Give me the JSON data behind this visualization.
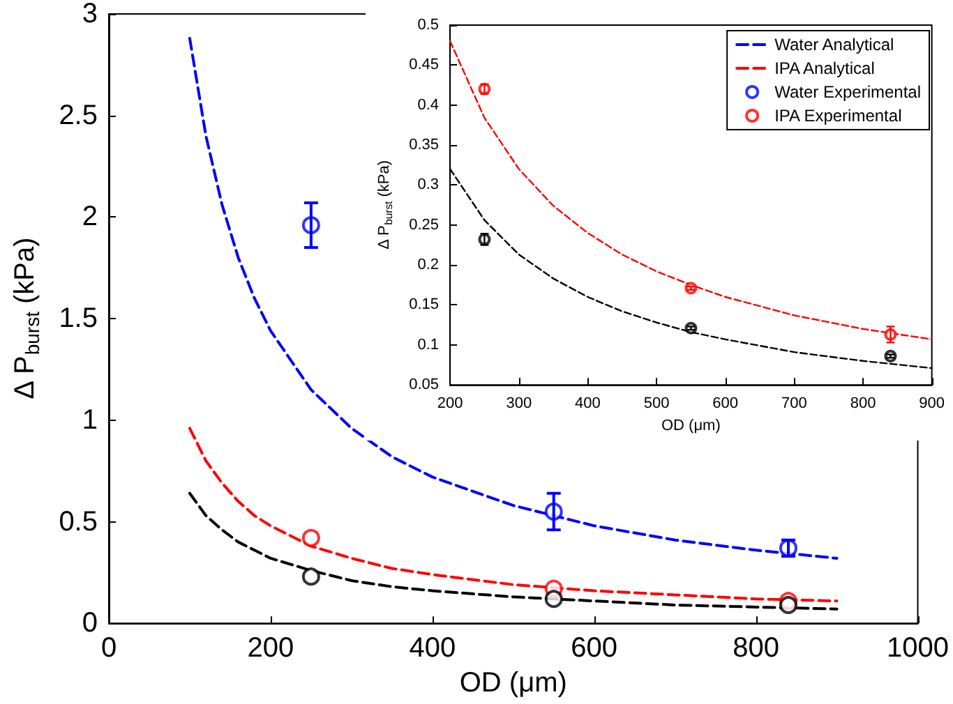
{
  "chart_data": [
    {
      "type": "line",
      "xlabel": "OD (μm)",
      "ylabel": "Δ P$_{burst}$ (kPa)",
      "xlim": [
        0,
        1000
      ],
      "xticks": [
        0,
        200,
        400,
        600,
        800,
        1000
      ],
      "ylim": [
        0,
        3
      ],
      "yticks": [
        0,
        0.5,
        1,
        1.5,
        2,
        2.5,
        3
      ],
      "grid": false,
      "legend": false,
      "series": [
        {
          "color": "#0000ff",
          "line_style": "dashed",
          "marker": "none",
          "x": [
            100,
            120,
            140,
            160,
            180,
            200,
            250,
            300,
            350,
            400,
            500,
            600,
            700,
            800,
            900
          ],
          "values": [
            2.88,
            2.4,
            2.06,
            1.8,
            1.6,
            1.44,
            1.15,
            0.96,
            0.82,
            0.72,
            0.58,
            0.48,
            0.41,
            0.36,
            0.32
          ]
        },
        {
          "color": "#ff0000",
          "line_style": "dashed",
          "marker": "none",
          "x": [
            100,
            120,
            140,
            160,
            180,
            200,
            250,
            300,
            350,
            400,
            500,
            600,
            700,
            800,
            900
          ],
          "values": [
            0.96,
            0.8,
            0.69,
            0.6,
            0.53,
            0.48,
            0.38,
            0.32,
            0.27,
            0.24,
            0.19,
            0.16,
            0.14,
            0.12,
            0.11
          ]
        },
        {
          "color": "#000000",
          "line_style": "dashed",
          "marker": "none",
          "x": [
            100,
            120,
            140,
            160,
            180,
            200,
            250,
            300,
            350,
            400,
            500,
            600,
            700,
            800,
            900
          ],
          "values": [
            0.64,
            0.53,
            0.46,
            0.4,
            0.36,
            0.32,
            0.26,
            0.21,
            0.18,
            0.16,
            0.13,
            0.11,
            0.09,
            0.08,
            0.07
          ]
        },
        {
          "type": "scatter",
          "color": "#0000ff",
          "marker": "circle",
          "x": [
            250,
            550,
            840
          ],
          "values": [
            1.96,
            0.55,
            0.37
          ],
          "errors": [
            0.11,
            0.09,
            0.04
          ]
        },
        {
          "type": "scatter",
          "color": "#ff0000",
          "marker": "circle",
          "x": [
            250,
            550,
            840
          ],
          "values": [
            0.42,
            0.17,
            0.11
          ]
        },
        {
          "type": "scatter",
          "color": "#000000",
          "marker": "circle",
          "x": [
            250,
            550,
            840
          ],
          "values": [
            0.23,
            0.12,
            0.09
          ]
        }
      ]
    },
    {
      "type": "line",
      "xlabel": "OD (μm)",
      "ylabel": "Δ P$_{burst}$ (kPa)",
      "xlim": [
        200,
        900
      ],
      "xticks": [
        200,
        300,
        400,
        500,
        600,
        700,
        800,
        900
      ],
      "ylim": [
        0.05,
        0.5
      ],
      "yticks": [
        0.05,
        0.1,
        0.15,
        0.2,
        0.25,
        0.3,
        0.35,
        0.4,
        0.45,
        0.5
      ],
      "grid": false,
      "legend": "top right",
      "series": [
        {
          "name": "Water Analytical",
          "color": "#0000ff",
          "line_style": "dashed",
          "marker": "none",
          "type": "line"
        },
        {
          "name": "IPA Analytical",
          "color": "#ff0000",
          "line_style": "dashed",
          "marker": "none",
          "x": [
            200,
            250,
            300,
            350,
            400,
            450,
            500,
            550,
            600,
            700,
            800,
            900
          ],
          "values": [
            0.48,
            0.384,
            0.32,
            0.274,
            0.24,
            0.213,
            0.192,
            0.175,
            0.16,
            0.137,
            0.12,
            0.107
          ]
        },
        {
          "color": "#000000",
          "line_style": "dashed",
          "marker": "none",
          "x": [
            200,
            250,
            300,
            350,
            400,
            450,
            500,
            550,
            600,
            700,
            800,
            900
          ],
          "values": [
            0.32,
            0.256,
            0.213,
            0.183,
            0.16,
            0.142,
            0.128,
            0.116,
            0.107,
            0.091,
            0.08,
            0.071
          ]
        },
        {
          "name": "Water Experimental",
          "type": "scatter",
          "color": "#0000ff",
          "marker": "circle"
        },
        {
          "name": "IPA Experimental",
          "type": "scatter",
          "color": "#ff0000",
          "marker": "circle",
          "x": [
            250,
            550,
            840
          ],
          "values": [
            0.42,
            0.171,
            0.113
          ],
          "errors": [
            0.006,
            0.002,
            0.01
          ]
        },
        {
          "type": "scatter",
          "color": "#000000",
          "marker": "circle",
          "x": [
            250,
            550,
            840
          ],
          "values": [
            0.232,
            0.121,
            0.086
          ],
          "errors": [
            0.007,
            0.002,
            0.002
          ]
        }
      ]
    }
  ]
}
